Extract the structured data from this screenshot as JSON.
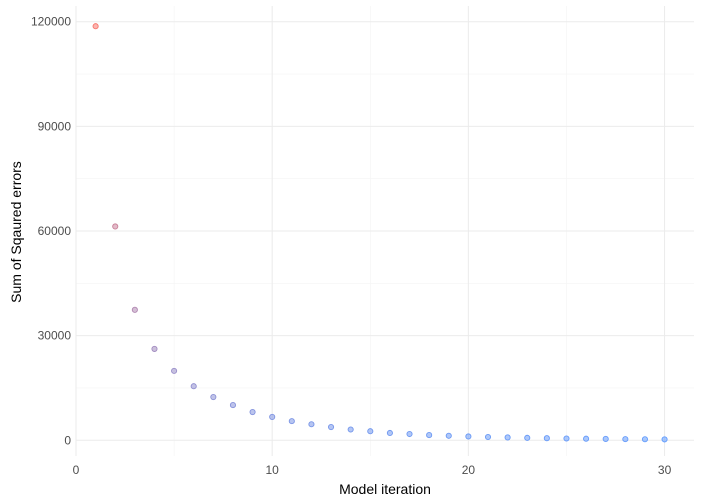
{
  "chart_data": {
    "type": "scatter",
    "title": "",
    "xlabel": "Model iteration",
    "ylabel": "Sum of Sqaured errors",
    "xlim": [
      0,
      31.5
    ],
    "ylim": [
      -4500,
      124500
    ],
    "x_ticks": [
      0,
      10,
      20,
      30
    ],
    "y_ticks": [
      0,
      30000,
      60000,
      90000,
      120000
    ],
    "x_tick_labels": [
      "0",
      "10",
      "20",
      "30"
    ],
    "y_tick_labels": [
      "0",
      "30000",
      "60000",
      "90000",
      "120000"
    ],
    "grid": true,
    "legend": "none",
    "color_gradient": {
      "high": "#f8766d",
      "low": "#619cff"
    },
    "points": [
      {
        "x": 1,
        "y": 118700
      },
      {
        "x": 2,
        "y": 61300
      },
      {
        "x": 3,
        "y": 37400
      },
      {
        "x": 4,
        "y": 26200
      },
      {
        "x": 5,
        "y": 19900
      },
      {
        "x": 6,
        "y": 15500
      },
      {
        "x": 7,
        "y": 12400
      },
      {
        "x": 8,
        "y": 10100
      },
      {
        "x": 9,
        "y": 8100
      },
      {
        "x": 10,
        "y": 6700
      },
      {
        "x": 11,
        "y": 5500
      },
      {
        "x": 12,
        "y": 4600
      },
      {
        "x": 13,
        "y": 3800
      },
      {
        "x": 14,
        "y": 3100
      },
      {
        "x": 15,
        "y": 2600
      },
      {
        "x": 16,
        "y": 2100
      },
      {
        "x": 17,
        "y": 1800
      },
      {
        "x": 18,
        "y": 1500
      },
      {
        "x": 19,
        "y": 1300
      },
      {
        "x": 20,
        "y": 1100
      },
      {
        "x": 21,
        "y": 950
      },
      {
        "x": 22,
        "y": 820
      },
      {
        "x": 23,
        "y": 700
      },
      {
        "x": 24,
        "y": 600
      },
      {
        "x": 25,
        "y": 520
      },
      {
        "x": 26,
        "y": 450
      },
      {
        "x": 27,
        "y": 390
      },
      {
        "x": 28,
        "y": 340
      },
      {
        "x": 29,
        "y": 300
      },
      {
        "x": 30,
        "y": 260
      }
    ]
  }
}
